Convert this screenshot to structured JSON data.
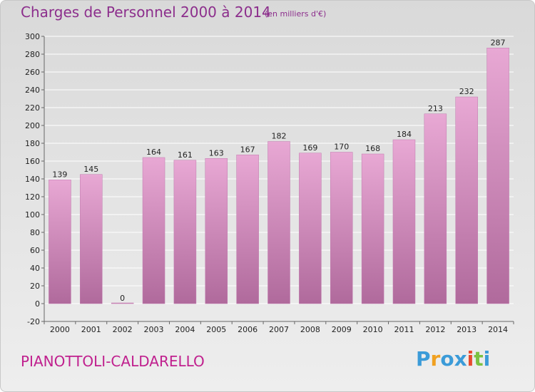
{
  "header": {
    "title": "Charges de Personnel 2000 à 2014",
    "subtitle": "(en milliers d'€)"
  },
  "footer": {
    "place": "PIANOTTOLI-CALDARELLO",
    "logo_letters": [
      "P",
      "r",
      "o",
      "x",
      "i",
      "t",
      "i"
    ],
    "logo_colors": [
      "#3b9bd8",
      "#f0a020",
      "#3b9bd8",
      "#3b9bd8",
      "#e84a2e",
      "#7cc242",
      "#3b9bd8"
    ]
  },
  "colors": {
    "bar_light": "#e8a8d4",
    "bar_dark": "#b06a9c",
    "grid": "#ffffff",
    "text": "#222222"
  },
  "chart_data": {
    "type": "bar",
    "title": "Charges de Personnel 2000 à 2014",
    "subtitle": "(en milliers d'€)",
    "categories": [
      "2000",
      "2001",
      "2002",
      "2003",
      "2004",
      "2005",
      "2006",
      "2007",
      "2008",
      "2009",
      "2010",
      "2011",
      "2012",
      "2013",
      "2014"
    ],
    "values": [
      139,
      145,
      0,
      164,
      161,
      163,
      167,
      182,
      169,
      170,
      168,
      184,
      213,
      232,
      287
    ],
    "ylim": [
      -20,
      300
    ],
    "yticks": [
      -20,
      0,
      20,
      40,
      60,
      80,
      100,
      120,
      140,
      160,
      180,
      200,
      220,
      240,
      260,
      280,
      300
    ],
    "grid": true,
    "xlabel": "",
    "ylabel": ""
  }
}
